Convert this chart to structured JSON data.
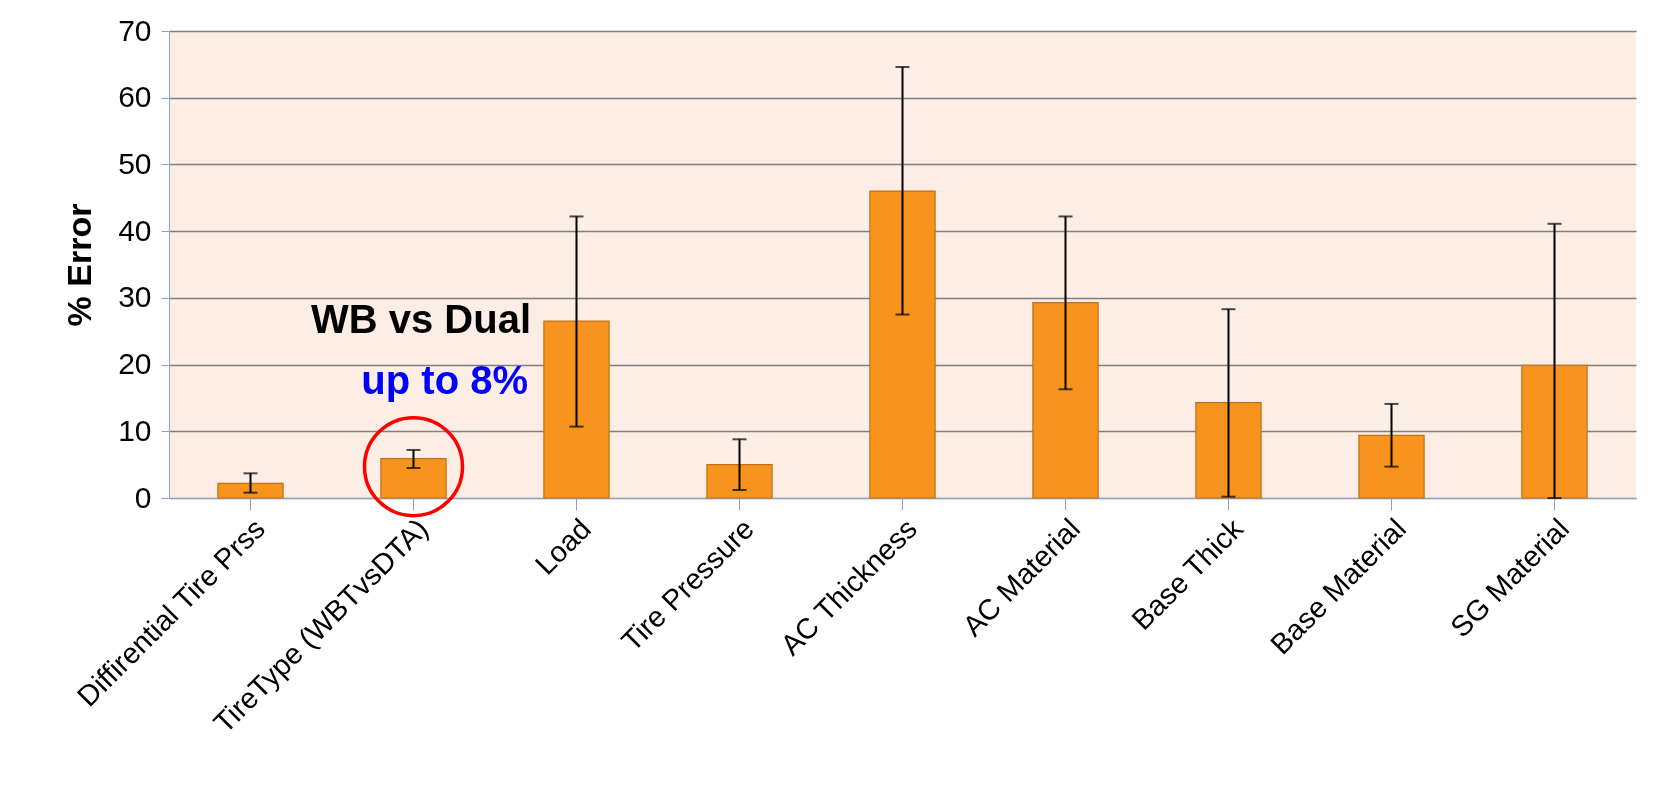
{
  "chart_data": {
    "type": "bar",
    "ylabel": "% Error",
    "categories": [
      "Diffirential Tire Prss",
      "TireType (WBTvsDTA)",
      "Load",
      "Tire Pressure",
      "AC Thickness",
      "AC Material",
      "Base Thick",
      "Base Material",
      "SG Material"
    ],
    "values": [
      2.2,
      5.9,
      26.5,
      5.0,
      46.0,
      29.3,
      14.3,
      9.4,
      19.9
    ],
    "errors": [
      [
        0.8,
        3.7
      ],
      [
        4.5,
        7.2
      ],
      [
        10.7,
        42.2
      ],
      [
        1.2,
        8.8
      ],
      [
        27.5,
        64.6
      ],
      [
        16.3,
        42.2
      ],
      [
        0.2,
        28.3
      ],
      [
        4.7,
        14.1
      ],
      [
        0.0,
        41.1
      ]
    ],
    "color": "#f7941d",
    "ylim": [
      0,
      70
    ],
    "yticks": [
      0,
      10,
      20,
      30,
      40,
      50,
      60,
      70
    ],
    "grid": "y",
    "annotations": [
      "WB vs Dual",
      "up to 8%"
    ]
  }
}
